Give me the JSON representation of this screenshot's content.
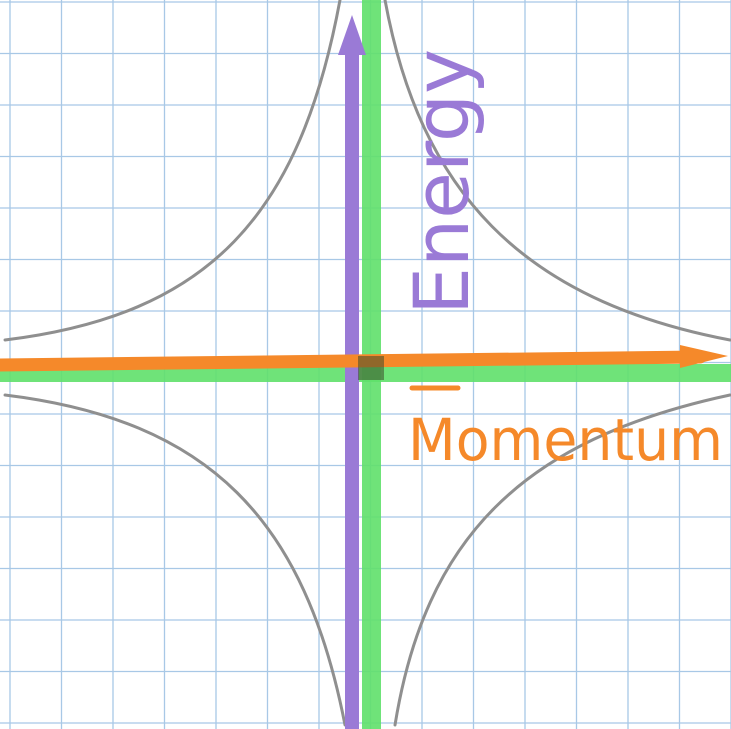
{
  "diagram": {
    "labels": {
      "vertical_axis": "Energy",
      "horizontal_axis": "Momentum"
    },
    "colors": {
      "paper": "#ffffff",
      "grid": "#a8c8e6",
      "curves": "#8f8f8f",
      "green_band": "#5fe06a",
      "energy_axis": "#9a7ad6",
      "momentum_axis": "#f5892a"
    },
    "grid_on": true,
    "curve_count": 4
  }
}
